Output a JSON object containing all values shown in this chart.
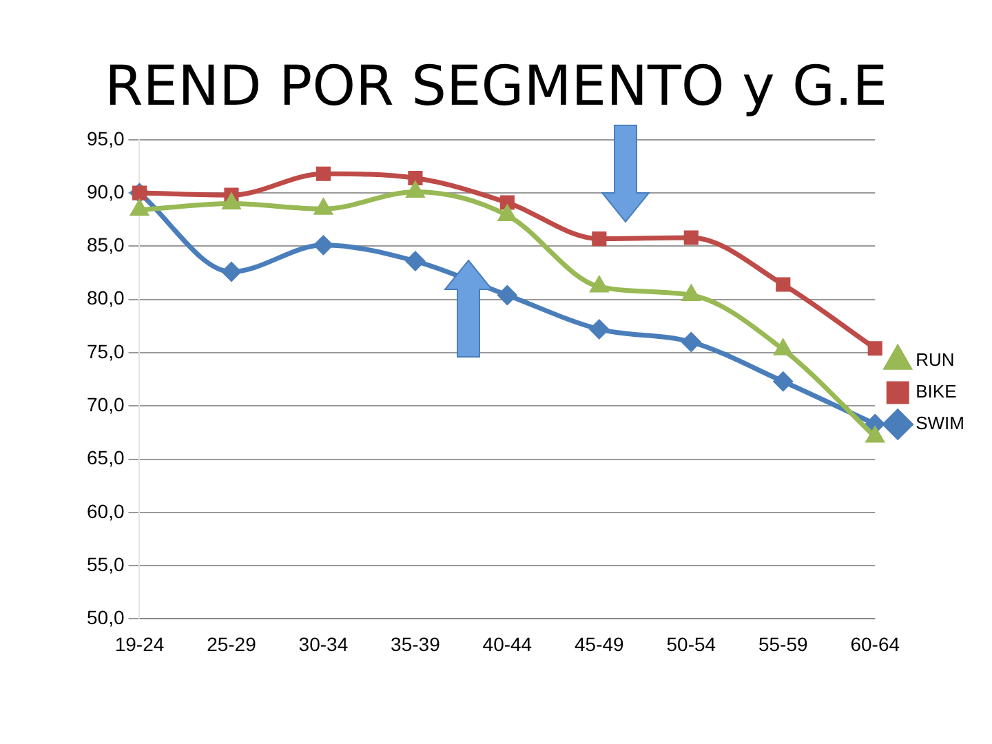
{
  "chart_data": {
    "type": "line",
    "title": "REND POR SEGMENTO y G.E",
    "categories": [
      "19-24",
      "25-29",
      "30-34",
      "35-39",
      "40-44",
      "45-49",
      "50-54",
      "55-59",
      "60-64"
    ],
    "series": [
      {
        "name": "SWIM",
        "color": "#4a7ebb",
        "marker": "diamond",
        "values": [
          90.0,
          82.6,
          85.1,
          83.6,
          80.4,
          77.2,
          76.0,
          72.3,
          68.3
        ]
      },
      {
        "name": "BIKE",
        "color": "#be4b48",
        "marker": "square",
        "values": [
          90.0,
          89.8,
          91.8,
          91.4,
          89.1,
          85.7,
          85.8,
          81.4,
          75.4
        ]
      },
      {
        "name": "RUN",
        "color": "#98b954",
        "marker": "triangle",
        "values": [
          88.4,
          89.0,
          88.5,
          90.1,
          87.9,
          81.2,
          80.4,
          75.3,
          67.1
        ]
      }
    ],
    "ylim": [
      50,
      95
    ],
    "yticks": [
      {
        "value": 50,
        "label": "50,0"
      },
      {
        "value": 55,
        "label": "55,0"
      },
      {
        "value": 60,
        "label": "60,0"
      },
      {
        "value": 65,
        "label": "65,0"
      },
      {
        "value": 70,
        "label": "70,0"
      },
      {
        "value": 75,
        "label": "75,0"
      },
      {
        "value": 80,
        "label": "80,0"
      },
      {
        "value": 85,
        "label": "85,0"
      },
      {
        "value": 90,
        "label": "90,0"
      },
      {
        "value": 95,
        "label": "95,0"
      }
    ],
    "grid": "y",
    "legend": "right"
  }
}
